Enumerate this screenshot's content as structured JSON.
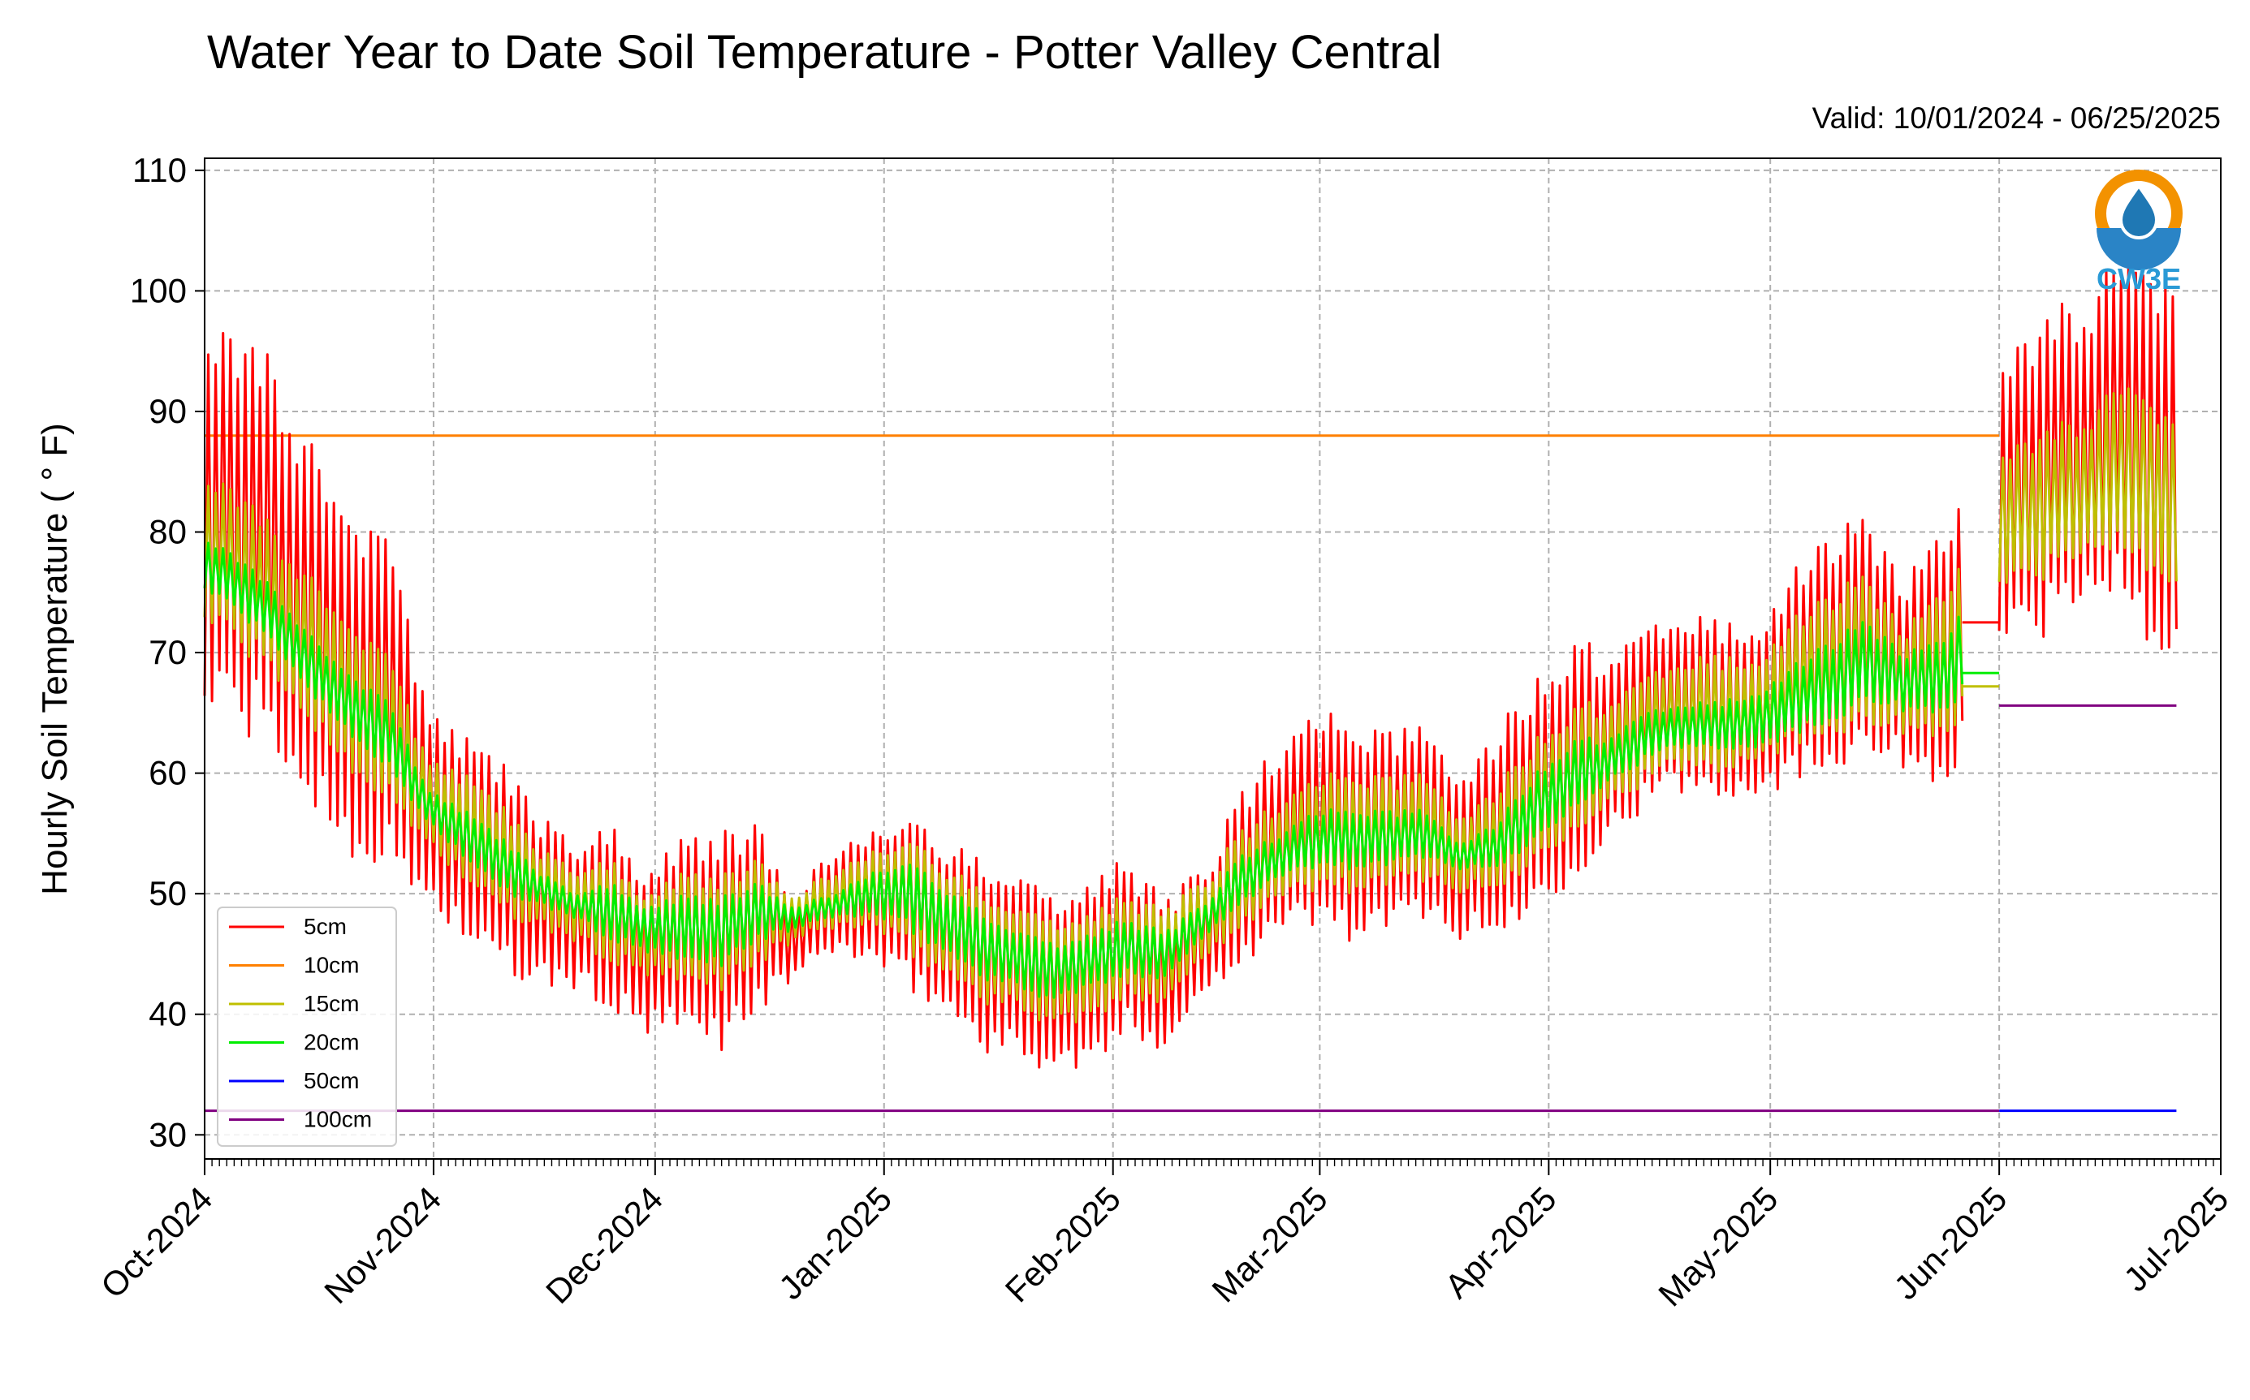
{
  "chart_data": {
    "type": "line",
    "title": "Water Year to Date Soil Temperature - Potter Valley Central",
    "subtitle": "Valid: 10/01/2024 - 06/25/2025",
    "xlabel": "",
    "ylabel": "Hourly Soil Temperature ( ° F)",
    "logo_text": "CW3E",
    "xlim": [
      "2024-10-01",
      "2025-07-01"
    ],
    "ylim": [
      28,
      111
    ],
    "y_ticks": [
      30,
      40,
      50,
      60,
      70,
      80,
      90,
      100,
      110
    ],
    "x_ticks": [
      {
        "date": "2024-10-01",
        "label": "Oct-2024"
      },
      {
        "date": "2024-11-01",
        "label": "Nov-2024"
      },
      {
        "date": "2024-12-01",
        "label": "Dec-2024"
      },
      {
        "date": "2025-01-01",
        "label": "Jan-2025"
      },
      {
        "date": "2025-02-01",
        "label": "Feb-2025"
      },
      {
        "date": "2025-03-01",
        "label": "Mar-2025"
      },
      {
        "date": "2025-04-01",
        "label": "Apr-2025"
      },
      {
        "date": "2025-05-01",
        "label": "May-2025"
      },
      {
        "date": "2025-06-01",
        "label": "Jun-2025"
      },
      {
        "date": "2025-07-01",
        "label": "Jul-2025"
      }
    ],
    "grid": true,
    "legend_position": "lower-left",
    "daily_envelope": {
      "dates": [
        "2024-10-01",
        "2024-10-06",
        "2024-10-11",
        "2024-10-16",
        "2024-10-21",
        "2024-10-26",
        "2024-10-31",
        "2024-11-05",
        "2024-11-10",
        "2024-11-15",
        "2024-11-20",
        "2024-11-25",
        "2024-11-30",
        "2024-12-05",
        "2024-12-10",
        "2024-12-15",
        "2024-12-20",
        "2024-12-25",
        "2024-12-30",
        "2025-01-04",
        "2025-01-09",
        "2025-01-14",
        "2025-01-19",
        "2025-01-24",
        "2025-01-29",
        "2025-02-03",
        "2025-02-08",
        "2025-02-13",
        "2025-02-18",
        "2025-02-23",
        "2025-02-28",
        "2025-03-05",
        "2025-03-10",
        "2025-03-15",
        "2025-03-20",
        "2025-03-25",
        "2025-03-30",
        "2025-04-04",
        "2025-04-09",
        "2025-04-14",
        "2025-04-19",
        "2025-04-24",
        "2025-04-29",
        "2025-05-04",
        "2025-05-09",
        "2025-05-14",
        "2025-05-19",
        "2025-05-24",
        "2025-05-29",
        "2025-06-03",
        "2025-06-08",
        "2025-06-13",
        "2025-06-18",
        "2025-06-23",
        "2025-06-25"
      ]
    },
    "series": [
      {
        "name": "5cm",
        "color": "#ff0000",
        "segments": [
          {
            "start": "2024-10-01",
            "end": "2025-05-27",
            "daily_max": [
              100,
              98,
              94,
              87,
              81,
              80,
              67,
              63,
              62,
              57,
              54,
              56,
              52,
              55,
              56,
              56,
              50,
              54,
              56,
              57,
              55,
              54,
              52,
              50,
              52,
              53,
              50,
              52,
              58,
              63,
              66,
              64,
              64,
              64,
              59,
              64,
              68,
              72,
              70,
              72,
              74,
              73,
              73,
              77,
              80,
              82,
              76,
              80,
              84
            ],
            "daily_min": [
              64,
              63,
              60,
              56,
              53,
              51,
              49,
              46,
              43,
              42,
              42,
              40,
              38,
              38,
              37,
              40,
              43,
              45,
              44,
              42,
              40,
              37,
              36,
              35,
              35,
              38,
              37,
              41,
              44,
              46,
              47,
              46,
              46,
              48,
              46,
              46,
              48,
              51,
              54,
              57,
              58,
              58,
              58,
              59,
              60,
              62,
              60,
              59,
              62
            ]
          },
          {
            "start": "2025-05-27",
            "end": "2025-06-01",
            "constant": 72.5
          },
          {
            "start": "2025-06-01",
            "end": "2025-06-25",
            "daily_max": [
              97,
              99,
              100,
              104,
              101,
              100
            ],
            "daily_min": [
              70,
              71,
              74,
              74,
              69,
              70
            ]
          }
        ]
      },
      {
        "name": "10cm",
        "color": "#ff8000",
        "segments": [
          {
            "start": "2024-10-01",
            "end": "2025-06-01",
            "constant": 88
          }
        ]
      },
      {
        "name": "15cm",
        "color": "#bfbf00",
        "segments": [
          {
            "start": "2024-10-01",
            "end": "2025-05-27",
            "daily_max": [
              86,
              84,
              80,
              76,
              72,
              70,
              62,
              60,
              58,
              54,
              52,
              53,
              50,
              52,
              52,
              53,
              50,
              52,
              54,
              55,
              53,
              51,
              49,
              48,
              49,
              50,
              49,
              51,
              55,
              58,
              60,
              60,
              60,
              60,
              56,
              59,
              63,
              66,
              66,
              68,
              70,
              70,
              70,
              73,
              75,
              77,
              72,
              75,
              79
            ],
            "daily_min": [
              72,
              70,
              67,
              63,
              60,
              57,
              54,
              51,
              48,
              47,
              46,
              44,
              43,
              42,
              42,
              44,
              46,
              47,
              47,
              45,
              43,
              41,
              40,
              39,
              39,
              41,
              41,
              44,
              47,
              49,
              50,
              50,
              50,
              51,
              50,
              50,
              52,
              55,
              57,
              59,
              60,
              60,
              61,
              62,
              63,
              64,
              63,
              63,
              65
            ]
          },
          {
            "start": "2025-05-27",
            "end": "2025-06-01",
            "constant": 67.2
          },
          {
            "start": "2025-06-01",
            "end": "2025-06-25",
            "daily_max": [
              88,
              89,
              90,
              93,
              90,
              89
            ],
            "daily_min": [
              75,
              76,
              78,
              78,
              76,
              75
            ]
          }
        ]
      },
      {
        "name": "20cm",
        "color": "#00ee00",
        "segments": [
          {
            "start": "2024-10-01",
            "end": "2025-05-27",
            "daily_max": [
              80,
              78,
              75,
              71,
              68,
              66,
              59,
              57,
              55,
              52,
              50,
              51,
              49,
              50,
              50,
              51,
              49,
              50,
              52,
              53,
              51,
              49,
              47,
              46,
              47,
              48,
              47,
              49,
              53,
              55,
              57,
              57,
              57,
              57,
              54,
              56,
              60,
              63,
              63,
              65,
              66,
              66,
              67,
              69,
              71,
              73,
              70,
              71,
              75
            ],
            "daily_min": [
              75,
              73,
              70,
              66,
              63,
              60,
              56,
              53,
              50,
              49,
              48,
              46,
              45,
              44,
              44,
              46,
              47,
              48,
              48,
              47,
              45,
              43,
              42,
              41,
              42,
              43,
              43,
              46,
              49,
              51,
              52,
              52,
              52,
              53,
              52,
              52,
              54,
              57,
              59,
              61,
              62,
              62,
              62,
              63,
              64,
              66,
              65,
              65,
              67
            ]
          },
          {
            "start": "2025-05-27",
            "end": "2025-06-01",
            "constant": 68.3
          }
        ]
      },
      {
        "name": "50cm",
        "color": "#0000ff",
        "segments": [
          {
            "start": "2025-06-01",
            "end": "2025-06-25",
            "constant": 32
          }
        ]
      },
      {
        "name": "100cm",
        "color": "#800080",
        "segments": [
          {
            "start": "2024-10-01",
            "end": "2025-06-01",
            "constant": 32
          },
          {
            "start": "2025-06-01",
            "end": "2025-06-25",
            "constant": 65.6
          }
        ]
      }
    ]
  }
}
